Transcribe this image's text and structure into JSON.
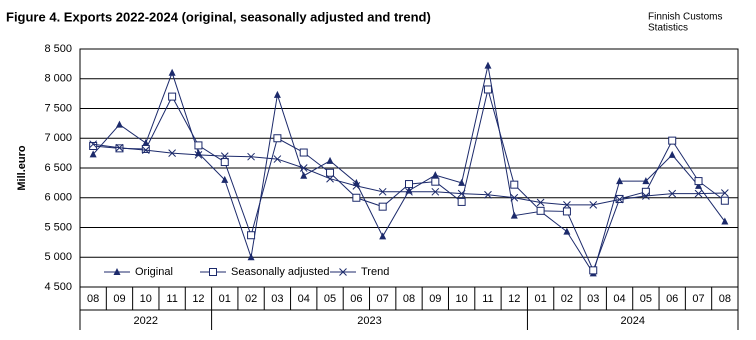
{
  "chart_data": {
    "type": "line",
    "title": "Figure 4. Exports  2022-2024  (original, seasonally adjusted and trend)",
    "source": [
      "Finnish Customs",
      "Statistics"
    ],
    "ylabel": "Mill.euro",
    "categories": [
      "08",
      "09",
      "10",
      "11",
      "12",
      "01",
      "02",
      "03",
      "04",
      "05",
      "06",
      "07",
      "08",
      "09",
      "10",
      "11",
      "12",
      "01",
      "02",
      "03",
      "04",
      "05",
      "06",
      "07",
      "08"
    ],
    "x_groups": [
      "2022",
      "2023",
      "2024"
    ],
    "ylim": [
      4500,
      8500
    ],
    "yticks": [
      {
        "value": 4500,
        "label": "4 500"
      },
      {
        "value": 5000,
        "label": "5 000"
      },
      {
        "value": 5500,
        "label": "5 500"
      },
      {
        "value": 6000,
        "label": "6 000"
      },
      {
        "value": 6500,
        "label": "6 500"
      },
      {
        "value": 7000,
        "label": "7 000"
      },
      {
        "value": 7500,
        "label": "7 500"
      },
      {
        "value": 8000,
        "label": "8 000"
      },
      {
        "value": 8500,
        "label": "8 500"
      }
    ],
    "grid": true,
    "legend": "lower left",
    "series": [
      {
        "name": "Original",
        "color": "#1c2a6b",
        "marker": "triangle",
        "values": [
          6730,
          7230,
          6920,
          8100,
          6750,
          6300,
          5000,
          7730,
          6370,
          6620,
          6250,
          5350,
          6120,
          6380,
          6250,
          8220,
          5700,
          5770,
          5430,
          4730,
          6280,
          6280,
          6720,
          6200,
          5600
        ]
      },
      {
        "name": "Seasonally adjusted",
        "color": "#1c2a6b",
        "marker": "square",
        "values": [
          6870,
          6830,
          6820,
          7700,
          6880,
          6600,
          5370,
          7000,
          6760,
          6420,
          6000,
          5850,
          6230,
          6270,
          5930,
          7820,
          6220,
          5780,
          5770,
          4780,
          5980,
          6100,
          6960,
          6280,
          5950
        ]
      },
      {
        "name": "Trend",
        "color": "#1c2a6b",
        "marker": "cross",
        "values": [
          6900,
          6840,
          6800,
          6750,
          6720,
          6700,
          6690,
          6650,
          6500,
          6320,
          6200,
          6100,
          6100,
          6100,
          6070,
          6050,
          6000,
          5920,
          5880,
          5880,
          5970,
          6030,
          6070,
          6070,
          6080
        ]
      }
    ]
  }
}
